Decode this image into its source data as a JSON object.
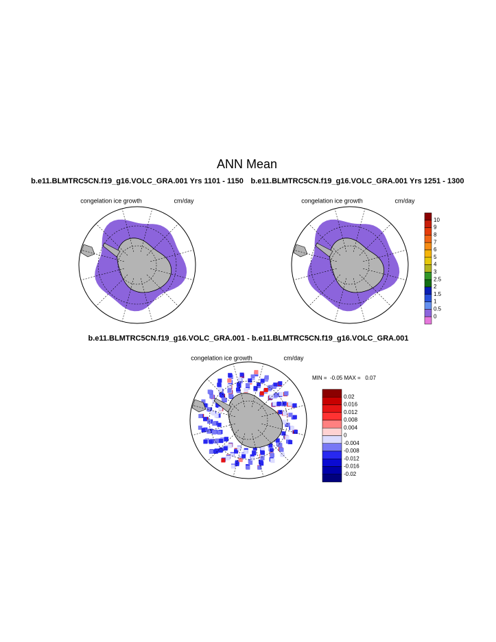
{
  "title": "ANN Mean",
  "panels": [
    {
      "subtitle": "b.e11.BLMTRC5CN.f19_g16.VOLC_GRA.001  Yrs 1101 - 1150",
      "label": "congelation ice growth",
      "units": "cm/day"
    },
    {
      "subtitle": "b.e11.BLMTRC5CN.f19_g16.VOLC_GRA.001  Yrs 1251 - 1300",
      "label": "congelation ice growth",
      "units": "cm/day"
    }
  ],
  "diff": {
    "subtitle": "b.e11.BLMTRC5CN.f19_g16.VOLC_GRA.001 - b.e11.BLMTRC5CN.f19_g16.VOLC_GRA.001",
    "label": "congelation ice growth",
    "units": "cm/day",
    "stats": "MIN =  -0.05 MAX =   0.07"
  },
  "colorbar": {
    "levels": [
      10,
      9,
      8,
      7,
      6,
      5,
      4,
      3,
      2.5,
      2,
      1.5,
      1,
      0.5,
      0
    ],
    "colors": [
      "#8b0000",
      "#c81e0a",
      "#e63c0a",
      "#f06414",
      "#f58c14",
      "#f5b40a",
      "#e6c80a",
      "#b4b41e",
      "#329628",
      "#146e14",
      "#0a1eb4",
      "#2850dc",
      "#6490f0",
      "#8c64dc",
      "#e678dc"
    ]
  },
  "diff_colorbar": {
    "levels": [
      0.02,
      0.016,
      0.012,
      0.008,
      0.004,
      0,
      -0.004,
      -0.008,
      -0.012,
      -0.016,
      -0.02
    ],
    "colors": [
      "#8b0000",
      "#c80000",
      "#e61414",
      "#ff3232",
      "#ff8080",
      "#ffd2d2",
      "#dcdcff",
      "#7878f5",
      "#2828f0",
      "#0a0ad2",
      "#0000aa",
      "#00007d"
    ]
  }
}
